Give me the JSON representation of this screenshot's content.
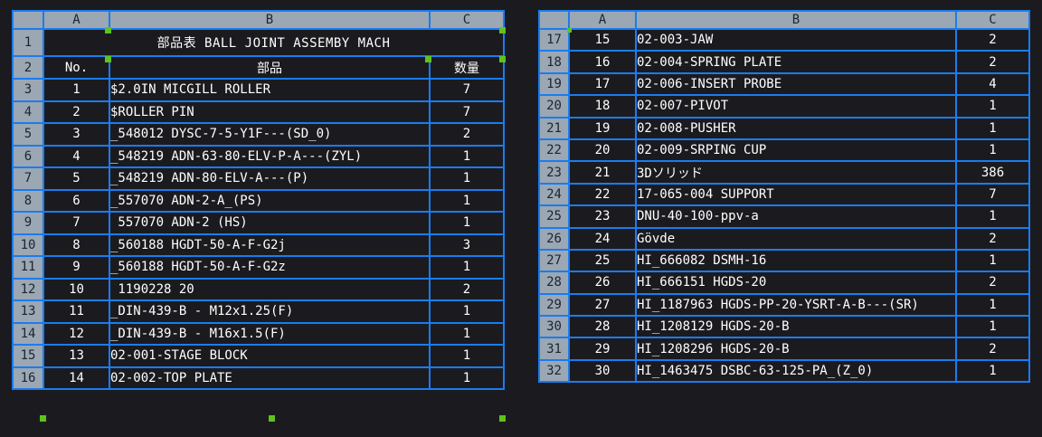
{
  "columns": [
    "A",
    "B",
    "C"
  ],
  "left_table": {
    "title_row": {
      "row_number": "1",
      "title": "部品表 BALL JOINT ASSEMBY MACH"
    },
    "header_row": {
      "row_number": "2",
      "no": "No.",
      "part": "部品",
      "qty": "数量"
    },
    "rows": [
      {
        "row_number": "3",
        "no": "1",
        "part": "$2.0IN MICGILL ROLLER",
        "qty": "7"
      },
      {
        "row_number": "4",
        "no": "2",
        "part": "$ROLLER PIN",
        "qty": "7"
      },
      {
        "row_number": "5",
        "no": "3",
        "part": "_548012 DYSC-7-5-Y1F---(SD_0)",
        "qty": "2"
      },
      {
        "row_number": "6",
        "no": "4",
        "part": "_548219 ADN-63-80-ELV-P-A---(ZYL)",
        "qty": "1"
      },
      {
        "row_number": "7",
        "no": "5",
        "part": "_548219 ADN-80-ELV-A---(P)",
        "qty": "1"
      },
      {
        "row_number": "8",
        "no": "6",
        "part": "_557070 ADN-2-A_(PS)",
        "qty": "1"
      },
      {
        "row_number": "9",
        "no": "7",
        "part": " 557070 ADN-2 (HS)",
        "qty": "1"
      },
      {
        "row_number": "10",
        "no": "8",
        "part": "_560188 HGDT-50-A-F-G2j",
        "qty": "3"
      },
      {
        "row_number": "11",
        "no": "9",
        "part": "_560188 HGDT-50-A-F-G2z",
        "qty": "1"
      },
      {
        "row_number": "12",
        "no": "10",
        "part": " 1190228 20",
        "qty": "2"
      },
      {
        "row_number": "13",
        "no": "11",
        "part": "_DIN-439-B - M12x1.25(F)",
        "qty": "1"
      },
      {
        "row_number": "14",
        "no": "12",
        "part": "_DIN-439-B - M16x1.5(F)",
        "qty": "1"
      },
      {
        "row_number": "15",
        "no": "13",
        "part": "02-001-STAGE BLOCK",
        "qty": "1"
      },
      {
        "row_number": "16",
        "no": "14",
        "part": "02-002-TOP PLATE",
        "qty": "1"
      }
    ]
  },
  "right_table": {
    "rows": [
      {
        "row_number": "17",
        "no": "15",
        "part": "02-003-JAW",
        "qty": "2"
      },
      {
        "row_number": "18",
        "no": "16",
        "part": "02-004-SPRING PLATE",
        "qty": "2"
      },
      {
        "row_number": "19",
        "no": "17",
        "part": "02-006-INSERT PROBE",
        "qty": "4"
      },
      {
        "row_number": "20",
        "no": "18",
        "part": "02-007-PIVOT",
        "qty": "1"
      },
      {
        "row_number": "21",
        "no": "19",
        "part": "02-008-PUSHER",
        "qty": "1"
      },
      {
        "row_number": "22",
        "no": "20",
        "part": "02-009-SRPING CUP",
        "qty": "1"
      },
      {
        "row_number": "23",
        "no": "21",
        "part": "3Dソリッド",
        "qty": "386"
      },
      {
        "row_number": "24",
        "no": "22",
        "part": "17-065-004 SUPPORT",
        "qty": "7"
      },
      {
        "row_number": "25",
        "no": "23",
        "part": "DNU-40-100-ppv-a",
        "qty": "1"
      },
      {
        "row_number": "26",
        "no": "24",
        "part": "Gövde",
        "qty": "2"
      },
      {
        "row_number": "27",
        "no": "25",
        "part": "HI_666082 DSMH-16",
        "qty": "1"
      },
      {
        "row_number": "28",
        "no": "26",
        "part": "HI_666151 HGDS-20",
        "qty": "2"
      },
      {
        "row_number": "29",
        "no": "27",
        "part": "HI_1187963 HGDS-PP-20-YSRT-A-B---(SR)",
        "qty": "1"
      },
      {
        "row_number": "30",
        "no": "28",
        "part": "HI_1208129 HGDS-20-B",
        "qty": "1"
      },
      {
        "row_number": "31",
        "no": "29",
        "part": "HI_1208296 HGDS-20-B",
        "qty": "2"
      },
      {
        "row_number": "32",
        "no": "30",
        "part": "HI_1463475 DSBC-63-125-PA_(Z_0)",
        "qty": "1"
      }
    ]
  },
  "colors": {
    "grid": "#1a7cf0",
    "header_bg": "#9ba7b3",
    "background": "#1b1b1f",
    "grip": "#5ec31c"
  }
}
